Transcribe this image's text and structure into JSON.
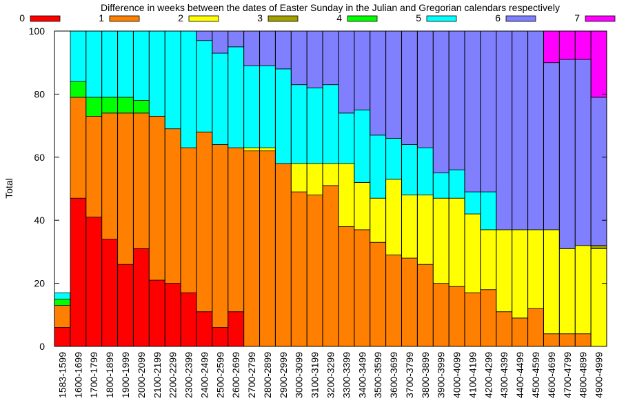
{
  "chart_data": {
    "type": "bar",
    "stacked": true,
    "title": "Difference in weeks between the dates of Easter Sunday in the Julian and Gregorian calendars respectively",
    "xlabel": "",
    "ylabel": "Total",
    "ylim": [
      0,
      100
    ],
    "yticks": [
      0,
      20,
      40,
      60,
      80,
      100
    ],
    "grid": false,
    "legend_position": "top",
    "categories": [
      "1583-1599",
      "1600-1699",
      "1700-1799",
      "1800-1899",
      "1900-1999",
      "2000-2099",
      "2100-2199",
      "2200-2299",
      "2300-2399",
      "2400-2499",
      "2500-2599",
      "2600-2699",
      "2700-2799",
      "2800-2899",
      "2900-2999",
      "3000-3099",
      "3100-3199",
      "3200-3299",
      "3300-3399",
      "3400-3499",
      "3500-3599",
      "3600-3699",
      "3700-3799",
      "3800-3899",
      "3900-3999",
      "4000-4099",
      "4100-4199",
      "4200-4299",
      "4300-4399",
      "4400-4499",
      "4500-4599",
      "4600-4699",
      "4700-4799",
      "4800-4899",
      "4900-4999"
    ],
    "series": [
      {
        "name": "0",
        "color": "#ff0000",
        "values": [
          6,
          47,
          41,
          34,
          26,
          31,
          21,
          20,
          17,
          11,
          6,
          11,
          0,
          0,
          0,
          0,
          0,
          0,
          0,
          0,
          0,
          0,
          0,
          0,
          0,
          0,
          0,
          0,
          0,
          0,
          0,
          0,
          0,
          0,
          0
        ]
      },
      {
        "name": "1",
        "color": "#ff8000",
        "values": [
          7,
          32,
          32,
          40,
          48,
          43,
          52,
          49,
          46,
          57,
          58,
          52,
          62,
          62,
          58,
          49,
          48,
          51,
          38,
          37,
          33,
          29,
          28,
          26,
          20,
          19,
          17,
          18,
          11,
          9,
          12,
          4,
          4,
          4,
          0
        ]
      },
      {
        "name": "2",
        "color": "#ffff00",
        "values": [
          0,
          0,
          0,
          0,
          0,
          0,
          0,
          0,
          0,
          0,
          0,
          0,
          1,
          1,
          0,
          9,
          10,
          7,
          20,
          15,
          14,
          24,
          20,
          22,
          27,
          28,
          25,
          19,
          26,
          28,
          25,
          33,
          27,
          28,
          31
        ]
      },
      {
        "name": "3",
        "color": "#a0a000",
        "values": [
          0,
          0,
          0,
          0,
          0,
          0,
          0,
          0,
          0,
          0,
          0,
          0,
          0,
          0,
          0,
          0,
          0,
          0,
          0,
          0,
          0,
          0,
          0,
          0,
          0,
          0,
          0,
          0,
          0,
          0,
          0,
          0,
          0,
          0,
          1
        ]
      },
      {
        "name": "4",
        "color": "#00ff00",
        "values": [
          2,
          5,
          6,
          5,
          5,
          4,
          0,
          0,
          0,
          0,
          0,
          0,
          0,
          0,
          0,
          0,
          0,
          0,
          0,
          0,
          0,
          0,
          0,
          0,
          0,
          0,
          0,
          0,
          0,
          0,
          0,
          0,
          0,
          0,
          0
        ]
      },
      {
        "name": "5",
        "color": "#00ffff",
        "values": [
          2,
          16,
          21,
          21,
          21,
          22,
          27,
          31,
          37,
          29,
          29,
          32,
          26,
          26,
          30,
          25,
          24,
          25,
          16,
          23,
          20,
          13,
          16,
          15,
          8,
          9,
          7,
          12,
          0,
          0,
          0,
          0,
          0,
          0,
          0
        ]
      },
      {
        "name": "6",
        "color": "#8080ff",
        "values": [
          0,
          0,
          0,
          0,
          0,
          0,
          0,
          0,
          0,
          3,
          7,
          5,
          11,
          11,
          12,
          17,
          18,
          17,
          26,
          25,
          33,
          34,
          36,
          37,
          45,
          44,
          51,
          51,
          63,
          63,
          63,
          53,
          60,
          59,
          47
        ]
      },
      {
        "name": "7",
        "color": "#ff00ff",
        "values": [
          0,
          0,
          0,
          0,
          0,
          0,
          0,
          0,
          0,
          0,
          0,
          0,
          0,
          0,
          0,
          0,
          0,
          0,
          0,
          0,
          0,
          0,
          0,
          0,
          0,
          0,
          0,
          0,
          0,
          0,
          0,
          10,
          9,
          9,
          21
        ]
      }
    ]
  }
}
